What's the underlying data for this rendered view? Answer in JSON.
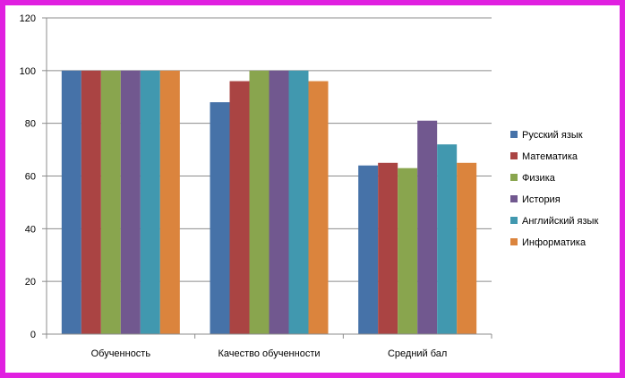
{
  "chart_data": {
    "type": "bar",
    "categories": [
      "Обученность",
      "Качество обученности",
      "Средний бал"
    ],
    "series": [
      {
        "name": "Русский язык",
        "color": "#4672a8",
        "values": [
          100,
          88,
          64
        ]
      },
      {
        "name": "Математика",
        "color": "#aa4443",
        "values": [
          100,
          96,
          65
        ]
      },
      {
        "name": "Физика",
        "color": "#89a54e",
        "values": [
          100,
          100,
          63
        ]
      },
      {
        "name": "История",
        "color": "#71588f",
        "values": [
          100,
          100,
          81
        ]
      },
      {
        "name": "Английский язык",
        "color": "#4198af",
        "values": [
          100,
          100,
          72
        ]
      },
      {
        "name": "Информатика",
        "color": "#db843d",
        "values": [
          100,
          96,
          65
        ]
      }
    ],
    "yticks": [
      0,
      20,
      40,
      60,
      80,
      100,
      120
    ],
    "ylim": [
      0,
      120
    ],
    "grid": true,
    "legend_position": "right",
    "title": "",
    "xlabel": "",
    "ylabel": ""
  }
}
